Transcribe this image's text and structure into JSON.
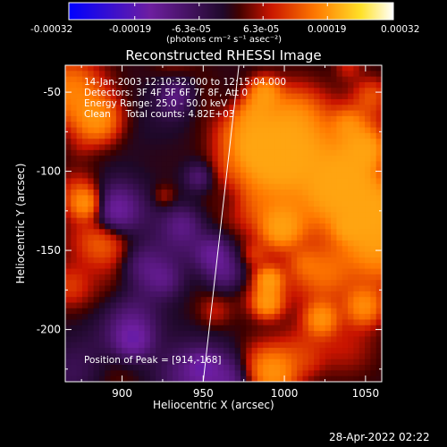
{
  "chart_data": {
    "type": "heatmap",
    "title": "Reconstructed RHESSI Image",
    "xlabel": "Heliocentric X (arcsec)",
    "ylabel": "Heliocentric Y (arcsec)",
    "xlim": [
      865,
      1060
    ],
    "ylim": [
      -233,
      -33
    ],
    "x_ticks": [
      900,
      950,
      1000,
      1050
    ],
    "y_ticks": [
      -200,
      -150,
      -100,
      -50
    ],
    "colorbar": {
      "range": [
        -0.00032,
        0.00032
      ],
      "tick_values": [
        -0.00032,
        -0.00019,
        -6.3e-05,
        6.3e-05,
        0.00019,
        0.00032
      ],
      "tick_labels": [
        "-0.00032",
        "-0.00019",
        "-6.3e-05",
        "6.3e-05",
        "0.00019",
        "0.00032"
      ],
      "unit_label": "(photons cm⁻² s⁻¹ asec⁻²)",
      "colors": [
        "#0000ff",
        "#6a1f9e",
        "#2a0a2a",
        "#c81400",
        "#ff8200",
        "#ffffff"
      ]
    },
    "annotations": [
      "14-Jan-2003 12:10:32.000 to 12:15:04.000",
      "Detectors: 3F 4F 5F 6F 7F 8F, Att 0",
      "Energy Range: 25.0 - 50.0 keV",
      "Clean     Total counts: 4.82E+03"
    ],
    "peak_label": "Position of Peak = [914,-168]",
    "limb_line": [
      [
        972,
        -33
      ],
      [
        950,
        -233
      ]
    ]
  },
  "timestamp": "28-Apr-2022 02:22"
}
